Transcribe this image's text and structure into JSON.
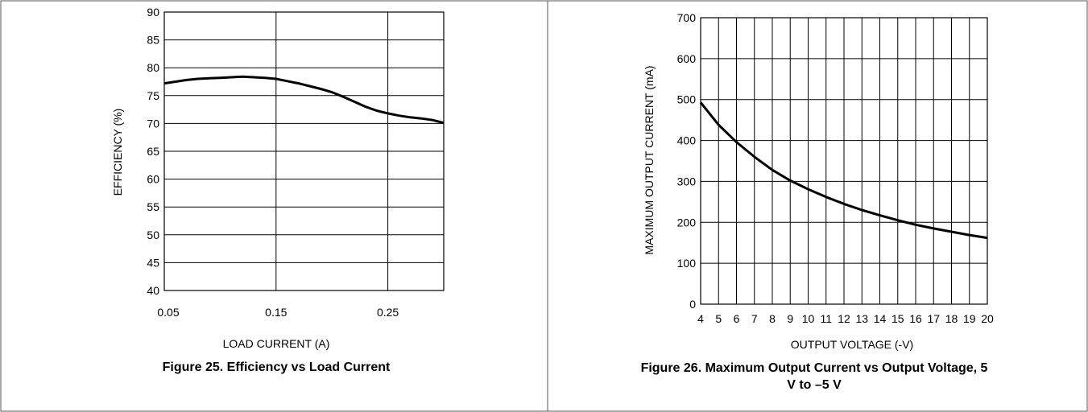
{
  "chart_data": [
    {
      "type": "line",
      "caption": "Figure 25. Efficiency vs Load Current",
      "xlabel": "LOAD CURRENT (A)",
      "ylabel": "EFFICIENCY (%)",
      "xlim": [
        0.05,
        0.3
      ],
      "ylim": [
        40,
        90
      ],
      "x_ticks": [
        0.05,
        0.15,
        0.25
      ],
      "x_tick_labels": [
        "0.05",
        "0.15",
        "0.25"
      ],
      "x_grid": [
        0.15,
        0.25
      ],
      "y_ticks": [
        40,
        45,
        50,
        55,
        60,
        65,
        70,
        75,
        80,
        85,
        90
      ],
      "y_tick_labels": [
        "40",
        "45",
        "50",
        "55",
        "60",
        "65",
        "70",
        "75",
        "80",
        "85",
        "90"
      ],
      "grid": true,
      "series": [
        {
          "x": [
            0.05,
            0.06,
            0.07,
            0.08,
            0.09,
            0.1,
            0.11,
            0.12,
            0.13,
            0.14,
            0.15,
            0.16,
            0.17,
            0.18,
            0.19,
            0.2,
            0.21,
            0.22,
            0.23,
            0.24,
            0.25,
            0.26,
            0.27,
            0.28,
            0.29,
            0.3
          ],
          "y": [
            77.2,
            77.5,
            77.8,
            78.0,
            78.1,
            78.2,
            78.3,
            78.4,
            78.3,
            78.2,
            78.0,
            77.6,
            77.2,
            76.7,
            76.2,
            75.6,
            74.8,
            73.9,
            73.0,
            72.3,
            71.8,
            71.4,
            71.1,
            70.9,
            70.6,
            70.1
          ]
        }
      ]
    },
    {
      "type": "line",
      "caption": "Figure 26. Maximum Output Current vs Output Voltage, 5 V to –5 V",
      "xlabel": "OUTPUT VOLTAGE (-V)",
      "ylabel": "MAXIMUM OUTPUT CURRENT (mA)",
      "xlim": [
        4,
        20
      ],
      "ylim": [
        0,
        700
      ],
      "x_ticks": [
        4,
        5,
        6,
        7,
        8,
        9,
        10,
        11,
        12,
        13,
        14,
        15,
        16,
        17,
        18,
        19,
        20
      ],
      "x_tick_labels": [
        "4",
        "5",
        "6",
        "7",
        "8",
        "9",
        "10",
        "11",
        "12",
        "13",
        "14",
        "15",
        "16",
        "17",
        "18",
        "19",
        "20"
      ],
      "y_ticks": [
        0,
        100,
        200,
        300,
        400,
        500,
        600,
        700
      ],
      "y_tick_labels": [
        "0",
        "100",
        "200",
        "300",
        "400",
        "500",
        "600",
        "700"
      ],
      "grid": true,
      "series": [
        {
          "x": [
            4,
            5,
            6,
            7,
            8,
            9,
            10,
            11,
            12,
            13,
            14,
            15,
            16,
            17,
            18,
            19,
            20
          ],
          "y": [
            493,
            438,
            396,
            360,
            328,
            302,
            281,
            262,
            245,
            230,
            217,
            205,
            194,
            185,
            177,
            169,
            162
          ]
        }
      ]
    }
  ]
}
